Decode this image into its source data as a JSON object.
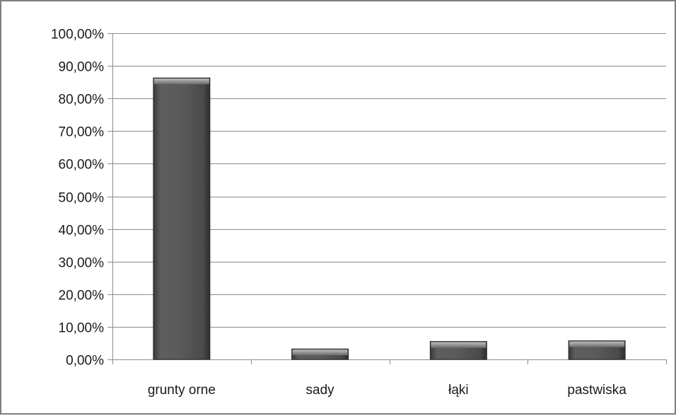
{
  "chart_data": {
    "type": "bar",
    "categories": [
      "grunty orne",
      "sady",
      "łąki",
      "pastwiska"
    ],
    "values": [
      86.3,
      3.2,
      5.5,
      5.7
    ],
    "value_unit": "%",
    "ylim": [
      0,
      100
    ],
    "yticks": [
      "0,00%",
      "10,00%",
      "20,00%",
      "30,00%",
      "40,00%",
      "50,00%",
      "60,00%",
      "70,00%",
      "80,00%",
      "90,00%",
      "100,00%"
    ],
    "grid": true,
    "legend": "none",
    "colors": {
      "bar": "#555555",
      "grid": "#8c8c8c",
      "axis": "#8c8c8c",
      "text": "#1a1a1a"
    }
  }
}
